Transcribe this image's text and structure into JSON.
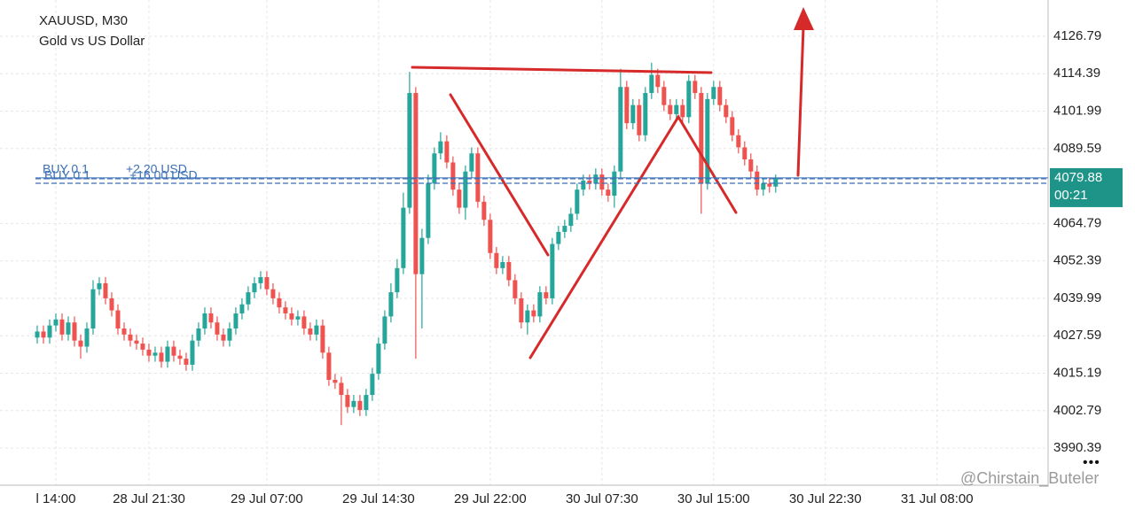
{
  "chart_data": {
    "type": "candlestick",
    "symbol": "XAUUSD, M30",
    "description": "Gold vs US Dollar",
    "up_color": "#26a69a",
    "down_color": "#ef5350",
    "open": [
      4027,
      4029,
      4027,
      4031,
      4033,
      4028,
      4032,
      4026,
      4024,
      4030,
      4043,
      4045,
      4040,
      4036,
      4030,
      4028,
      4026,
      4025,
      4023,
      4021,
      4022,
      4019,
      4024,
      4021,
      4020,
      4018,
      4026,
      4030,
      4035,
      4032,
      4028,
      4026,
      4030,
      4035,
      4038,
      4042,
      4045,
      4047,
      4043,
      4040,
      4037,
      4035,
      4033,
      4034,
      4030,
      4028,
      4031,
      4022,
      4013,
      4012,
      4008,
      4004,
      4006,
      4003,
      4008,
      4015,
      4025,
      4034,
      4042,
      4050,
      4070,
      4108,
      4048,
      4060,
      4078,
      4088,
      4092,
      4085,
      4076,
      4070,
      4082,
      4088,
      4072,
      4066,
      4055,
      4050,
      4052,
      4046,
      4040,
      4032,
      4036,
      4034,
      4042,
      4040,
      4058,
      4062,
      4064,
      4068,
      4076,
      4079,
      4078,
      4081,
      4076,
      4074,
      4082,
      4110,
      4098,
      4104,
      4094,
      4108,
      4114,
      4110,
      4104,
      4101,
      4104,
      4100,
      4112,
      4108,
      4078,
      4106,
      4110,
      4104,
      4100,
      4094,
      4090,
      4086,
      4082,
      4076,
      4078,
      4077
    ],
    "high": [
      4031,
      4031,
      4033,
      4035,
      4035,
      4034,
      4034,
      4028,
      4032,
      4046,
      4047,
      4047,
      4042,
      4038,
      4032,
      4030,
      4028,
      4027,
      4025,
      4024,
      4024,
      4026,
      4026,
      4023,
      4022,
      4028,
      4032,
      4037,
      4037,
      4034,
      4030,
      4032,
      4037,
      4040,
      4044,
      4047,
      4049,
      4049,
      4045,
      4042,
      4039,
      4037,
      4036,
      4036,
      4032,
      4033,
      4033,
      4024,
      4015,
      4014,
      4010,
      4008,
      4008,
      4010,
      4017,
      4027,
      4036,
      4045,
      4053,
      4075,
      4115,
      4110,
      4063,
      4081,
      4090,
      4095,
      4094,
      4087,
      4078,
      4084,
      4090,
      4090,
      4074,
      4068,
      4057,
      4054,
      4054,
      4048,
      4042,
      4038,
      4038,
      4044,
      4044,
      4060,
      4064,
      4066,
      4070,
      4078,
      4081,
      4081,
      4083,
      4083,
      4078,
      4084,
      4116,
      4112,
      4106,
      4106,
      4110,
      4118,
      4116,
      4112,
      4106,
      4106,
      4106,
      4114,
      4114,
      4110,
      4108,
      4112,
      4112,
      4106,
      4102,
      4096,
      4092,
      4088,
      4084,
      4080,
      4080,
      4081
    ],
    "low": [
      4025,
      4025,
      4025,
      4029,
      4026,
      4026,
      4024,
      4020,
      4022,
      4028,
      4041,
      4038,
      4034,
      4028,
      4026,
      4024,
      4023,
      4021,
      4019,
      4019,
      4017,
      4017,
      4019,
      4018,
      4016,
      4016,
      4024,
      4028,
      4030,
      4026,
      4024,
      4024,
      4028,
      4033,
      4036,
      4040,
      4043,
      4041,
      4038,
      4035,
      4033,
      4031,
      4031,
      4028,
      4026,
      4026,
      4020,
      4011,
      4010,
      3998,
      4002,
      4002,
      4001,
      4001,
      4006,
      4013,
      4023,
      4032,
      4040,
      4048,
      4068,
      4020,
      4030,
      4058,
      4076,
      4086,
      4083,
      4074,
      4068,
      4066,
      4080,
      4070,
      4064,
      4053,
      4048,
      4048,
      4044,
      4038,
      4030,
      4028,
      4032,
      4032,
      4038,
      4038,
      4056,
      4060,
      4062,
      4066,
      4074,
      4076,
      4076,
      4074,
      4072,
      4070,
      4080,
      4096,
      4096,
      4092,
      4092,
      4106,
      4108,
      4102,
      4099,
      4099,
      4098,
      4098,
      4106,
      4068,
      4076,
      4104,
      4102,
      4098,
      4092,
      4088,
      4084,
      4080,
      4074,
      4074,
      4075,
      4075
    ],
    "close": [
      4029,
      4027,
      4031,
      4033,
      4028,
      4032,
      4026,
      4024,
      4030,
      4043,
      4045,
      4040,
      4036,
      4030,
      4028,
      4026,
      4025,
      4023,
      4021,
      4022,
      4019,
      4024,
      4021,
      4020,
      4018,
      4026,
      4030,
      4035,
      4032,
      4028,
      4026,
      4030,
      4035,
      4038,
      4042,
      4045,
      4047,
      4043,
      4040,
      4037,
      4035,
      4033,
      4034,
      4030,
      4028,
      4031,
      4022,
      4013,
      4012,
      4008,
      4004,
      4006,
      4003,
      4008,
      4015,
      4025,
      4034,
      4042,
      4050,
      4070,
      4108,
      4048,
      4060,
      4078,
      4088,
      4092,
      4085,
      4076,
      4070,
      4082,
      4088,
      4072,
      4066,
      4055,
      4050,
      4052,
      4046,
      4040,
      4032,
      4036,
      4034,
      4042,
      4040,
      4058,
      4062,
      4064,
      4068,
      4076,
      4079,
      4078,
      4081,
      4076,
      4074,
      4082,
      4110,
      4098,
      4104,
      4094,
      4108,
      4114,
      4110,
      4104,
      4101,
      4104,
      4100,
      4112,
      4108,
      4078,
      4106,
      4110,
      4104,
      4100,
      4094,
      4090,
      4086,
      4082,
      4076,
      4078,
      4077,
      4079.88
    ],
    "xlim": [
      -6,
      162.9
    ],
    "xticks": [
      {
        "value": 3,
        "label": "l 14:00"
      },
      {
        "value": 18,
        "label": "28 Jul 21:30"
      },
      {
        "value": 37,
        "label": "29 Jul 07:00"
      },
      {
        "value": 55,
        "label": "29 Jul 14:30"
      },
      {
        "value": 73,
        "label": "29 Jul 22:00"
      },
      {
        "value": 91,
        "label": "30 Jul 07:30"
      },
      {
        "value": 109,
        "label": "30 Jul 15:00"
      },
      {
        "value": 127,
        "label": "30 Jul 22:30"
      },
      {
        "value": 145,
        "label": "31 Jul 08:00"
      }
    ],
    "ylim": [
      3978.1,
      4138.8
    ],
    "yticks": [
      4126.79,
      4114.39,
      4101.99,
      4089.59,
      4064.79,
      4052.39,
      4039.99,
      4027.59,
      4015.19,
      4002.79,
      3990.39
    ],
    "grid": true,
    "current_price": 4079.88,
    "countdown": "00:21",
    "positions": [
      {
        "side": "BUY 0.1",
        "profit": "+2.20 USD",
        "price": 4079.6
      },
      {
        "side": "BUY 0.1",
        "profit": "+16.00 USD",
        "price": 4078.1
      }
    ],
    "watermark": "@Chirstain_Buteler",
    "menu": "•••"
  }
}
